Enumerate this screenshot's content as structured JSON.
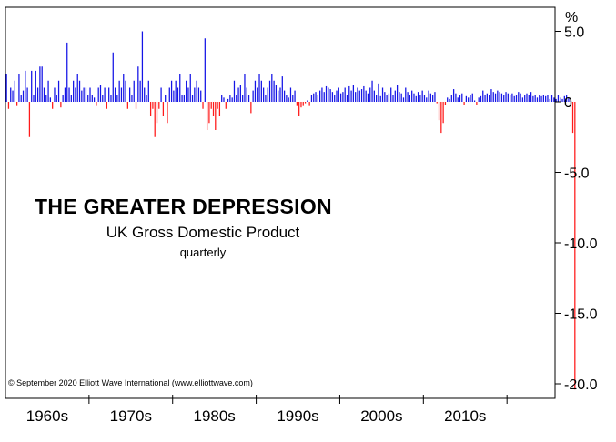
{
  "chart_data": {
    "type": "bar",
    "title": "THE GREATER DEPRESSION",
    "subtitle": "UK Gross Domestic Product",
    "subtitle2": "quarterly",
    "unit_label": "%",
    "ylim": [
      -20.5,
      5.5
    ],
    "y_ticks": [
      {
        "value": 5,
        "label": "5.0"
      },
      {
        "value": 0,
        "label": "0"
      },
      {
        "value": -5,
        "label": "-5.0"
      },
      {
        "value": -10,
        "label": "-10.0"
      },
      {
        "value": -15,
        "label": "-15.0"
      },
      {
        "value": -20,
        "label": "-20.0"
      }
    ],
    "x_range": [
      1955.0,
      2020.75
    ],
    "decade_labels": [
      {
        "label": "1960s",
        "center": 1960
      },
      {
        "label": "1970s",
        "center": 1970
      },
      {
        "label": "1980s",
        "center": 1980
      },
      {
        "label": "1990s",
        "center": 1990
      },
      {
        "label": "2000s",
        "center": 2000
      },
      {
        "label": "2010s",
        "center": 2010
      }
    ],
    "decade_ticks": [
      1965,
      1975,
      1985,
      1995,
      2005,
      2015
    ],
    "colors": {
      "positive": "#1414e6",
      "negative": "#ff1a1a",
      "axis": "#000000"
    },
    "series": [
      {
        "start_year": 1955.0,
        "step": 0.25,
        "values": [
          2.0,
          -0.5,
          1.0,
          0.8,
          1.5,
          -0.3,
          2.0,
          0.5,
          0.8,
          2.2,
          1.0,
          -2.5,
          2.2,
          0.5,
          2.2,
          1.0,
          2.5,
          2.5,
          1.0,
          0.5,
          1.5,
          0.3,
          -0.5,
          1.0,
          0.5,
          1.5,
          -0.4,
          0.5,
          1.0,
          4.2,
          1.0,
          0.5,
          1.5,
          1.0,
          2.0,
          1.5,
          0.8,
          1.0,
          1.0,
          0.5,
          1.0,
          0.5,
          0.3,
          -0.3,
          1.0,
          1.2,
          0.5,
          1.0,
          -0.5,
          1.0,
          0.5,
          3.5,
          1.0,
          0.5,
          1.5,
          1.0,
          2.0,
          1.5,
          -0.5,
          1.0,
          0.5,
          1.5,
          -0.5,
          2.5,
          1.5,
          5.0,
          1.0,
          0.5,
          1.5,
          -1.0,
          -0.5,
          -2.5,
          -1.5,
          -0.5,
          1.0,
          -1.0,
          0.5,
          -1.5,
          1.0,
          1.5,
          0.8,
          1.5,
          1.0,
          2.0,
          0.5,
          0.5,
          1.5,
          1.0,
          2.0,
          0.5,
          1.0,
          1.5,
          1.0,
          0.8,
          -0.5,
          4.5,
          -2.0,
          -1.5,
          -0.5,
          -1.0,
          -2.0,
          -0.5,
          -1.0,
          0.5,
          0.3,
          -0.5,
          0.2,
          0.5,
          0.3,
          1.5,
          0.5,
          1.0,
          1.2,
          0.5,
          2.0,
          1.0,
          0.5,
          -0.8,
          0.8,
          1.5,
          1.0,
          2.0,
          1.5,
          1.0,
          0.5,
          1.0,
          1.5,
          2.0,
          1.5,
          1.2,
          0.8,
          1.0,
          1.8,
          0.8,
          0.5,
          0.3,
          1.0,
          0.5,
          0.8,
          -0.3,
          -1.0,
          -0.4,
          -0.3,
          -0.1,
          0.1,
          -0.3,
          0.5,
          0.6,
          0.7,
          0.5,
          0.8,
          1.0,
          0.7,
          1.1,
          1.0,
          0.9,
          0.7,
          0.5,
          0.8,
          1.0,
          0.6,
          0.7,
          1.0,
          0.5,
          1.1,
          0.8,
          1.2,
          0.7,
          1.0,
          0.8,
          0.9,
          1.1,
          0.8,
          0.6,
          1.0,
          1.5,
          0.8,
          0.5,
          1.3,
          0.4,
          1.0,
          0.7,
          0.5,
          0.6,
          1.0,
          0.5,
          0.8,
          1.2,
          0.7,
          0.6,
          0.3,
          1.0,
          0.7,
          0.5,
          0.8,
          0.6,
          0.4,
          0.7,
          0.5,
          0.8,
          0.5,
          0.3,
          0.8,
          0.6,
          0.5,
          0.7,
          -0.1,
          -1.3,
          -2.2,
          -1.5,
          -0.2,
          0.3,
          0.2,
          0.5,
          0.9,
          0.6,
          0.3,
          0.5,
          0.6,
          -0.2,
          0.4,
          0.3,
          0.5,
          0.6,
          0.1,
          -0.2,
          0.3,
          0.4,
          0.8,
          0.5,
          0.6,
          0.5,
          0.9,
          0.7,
          0.6,
          0.8,
          0.7,
          0.6,
          0.5,
          0.7,
          0.6,
          0.5,
          0.6,
          0.4,
          0.5,
          0.7,
          0.6,
          0.3,
          0.5,
          0.6,
          0.5,
          0.7,
          0.4,
          0.5,
          0.3,
          0.5,
          0.4,
          0.5,
          0.4,
          0.5,
          0.2,
          0.5,
          0.3,
          0.2,
          0.5,
          0.3,
          0.2,
          0.4,
          0.5,
          0.3,
          0.1,
          -2.2,
          -20.4
        ]
      }
    ],
    "copyright": "© September 2020 Elliott Wave International (www.elliottwave.com)"
  }
}
